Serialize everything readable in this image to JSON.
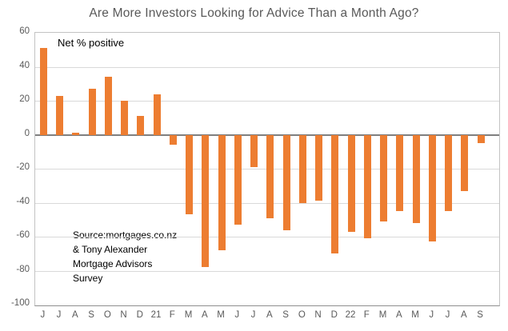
{
  "chart": {
    "title": "Are More Investors Looking for Advice Than a Month Ago?",
    "annotation": "Net % positive",
    "source_lines": [
      "Source:mortgages.co.nz",
      "& Tony Alexander",
      "Mortgage Advisors",
      "Survey"
    ],
    "colors": {
      "bar": "#ed7d31",
      "title_text": "#595959",
      "axis_text": "#595959",
      "gridline": "#d9d9d9",
      "zero_line": "#7f7f7f"
    }
  },
  "chart_data": {
    "type": "bar",
    "title": "Are More Investors Looking for Advice Than a Month Ago?",
    "annotation": "Net % positive",
    "source": "Source:mortgages.co.nz & Tony Alexander Mortgage Advisors Survey",
    "categories": [
      "J",
      "J",
      "A",
      "S",
      "O",
      "N",
      "D",
      "21",
      "F",
      "M",
      "A",
      "M",
      "J",
      "J",
      "A",
      "S",
      "O",
      "N",
      "D",
      "22",
      "F",
      "M",
      "A",
      "M",
      "J",
      "J",
      "A",
      "S"
    ],
    "values": [
      51,
      23,
      1,
      27,
      34,
      20,
      11,
      24,
      -6,
      -47,
      -78,
      -68,
      -53,
      -19,
      -49,
      -56,
      -40,
      -39,
      -70,
      -57,
      -61,
      -51,
      -45,
      -52,
      -63,
      -45,
      -33,
      -5
    ],
    "xlabel": "",
    "ylabel": "",
    "ylim": [
      -100,
      60
    ],
    "yticks": [
      60,
      40,
      20,
      0,
      -20,
      -40,
      -60,
      -80,
      -100
    ],
    "grid": true,
    "legend": "none"
  }
}
